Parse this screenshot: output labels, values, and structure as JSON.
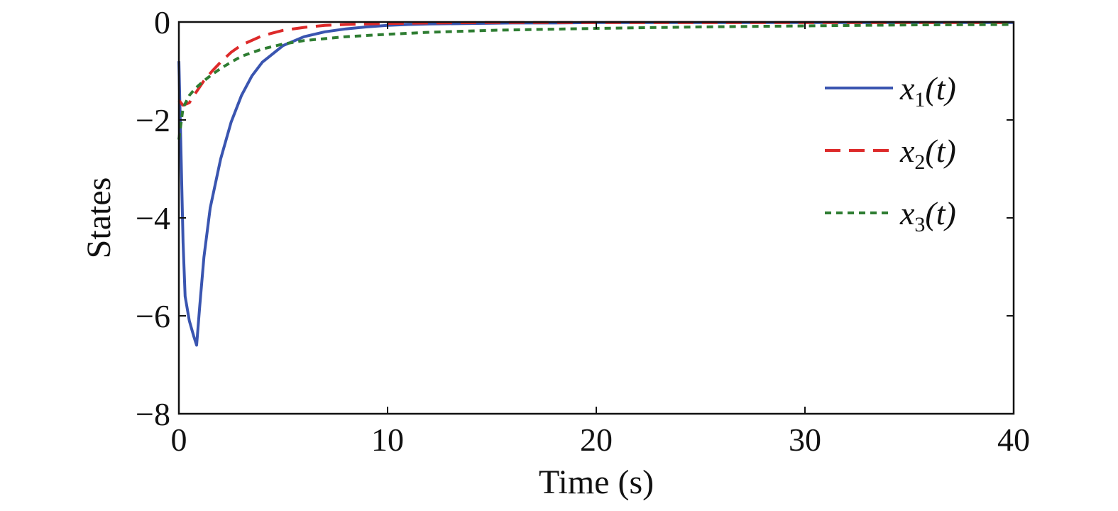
{
  "chart_data": {
    "type": "line",
    "title": "",
    "xlabel": "Time (s)",
    "ylabel": "States",
    "xlim": [
      0,
      40
    ],
    "ylim": [
      -8,
      0
    ],
    "xticks": [
      0,
      10,
      20,
      30,
      40
    ],
    "xtick_labels": [
      "0",
      "10",
      "20",
      "30",
      "40"
    ],
    "yticks": [
      -8,
      -6,
      -4,
      -2,
      0
    ],
    "ytick_labels": [
      "−8",
      "−6",
      "−4",
      "−2",
      "0"
    ],
    "grid": false,
    "legend_position": "right",
    "series": [
      {
        "name": "x1(t)",
        "legend_base": "x",
        "legend_sub": "1",
        "legend_suffix": "(t)",
        "color": "#3a55b0",
        "style": "solid",
        "x": [
          0,
          0.1,
          0.2,
          0.3,
          0.5,
          0.7,
          0.85,
          1.0,
          1.2,
          1.5,
          2,
          2.5,
          3,
          3.5,
          4,
          5,
          6,
          7,
          8,
          9,
          10,
          11,
          12,
          14,
          16,
          18,
          20,
          25,
          30,
          35,
          40
        ],
        "y": [
          -0.8,
          -2.6,
          -4.5,
          -5.6,
          -6.1,
          -6.4,
          -6.6,
          -5.8,
          -4.8,
          -3.8,
          -2.8,
          -2.05,
          -1.5,
          -1.1,
          -0.82,
          -0.48,
          -0.3,
          -0.2,
          -0.14,
          -0.1,
          -0.07,
          -0.05,
          -0.04,
          -0.03,
          -0.02,
          -0.02,
          -0.01,
          -0.01,
          -0.01,
          -0.01,
          -0.01
        ]
      },
      {
        "name": "x2(t)",
        "legend_base": "x",
        "legend_sub": "2",
        "legend_suffix": "(t)",
        "color": "#dd2a2a",
        "style": "dashed",
        "x": [
          0,
          0.2,
          0.5,
          0.8,
          1.2,
          1.6,
          2,
          2.5,
          3,
          4,
          5,
          6,
          7,
          8,
          10,
          12,
          15,
          20,
          25,
          30,
          35,
          40
        ],
        "y": [
          -1.6,
          -1.7,
          -1.65,
          -1.45,
          -1.2,
          -1.0,
          -0.82,
          -0.62,
          -0.47,
          -0.28,
          -0.17,
          -0.11,
          -0.07,
          -0.05,
          -0.03,
          -0.02,
          -0.01,
          -0.01,
          -0.01,
          -0.01,
          -0.01,
          -0.01
        ]
      },
      {
        "name": "x3(t)",
        "legend_base": "x",
        "legend_sub": "3",
        "legend_suffix": "(t)",
        "color": "#2e7d32",
        "style": "dotted",
        "x": [
          0,
          0.2,
          0.5,
          0.8,
          1.2,
          1.6,
          2,
          2.5,
          3,
          4,
          5,
          6,
          8,
          10,
          12,
          15,
          20,
          25,
          30,
          35,
          40
        ],
        "y": [
          -2.4,
          -1.75,
          -1.5,
          -1.35,
          -1.2,
          -1.07,
          -0.95,
          -0.82,
          -0.7,
          -0.55,
          -0.45,
          -0.38,
          -0.3,
          -0.25,
          -0.21,
          -0.17,
          -0.13,
          -0.1,
          -0.08,
          -0.06,
          -0.05
        ]
      }
    ]
  }
}
